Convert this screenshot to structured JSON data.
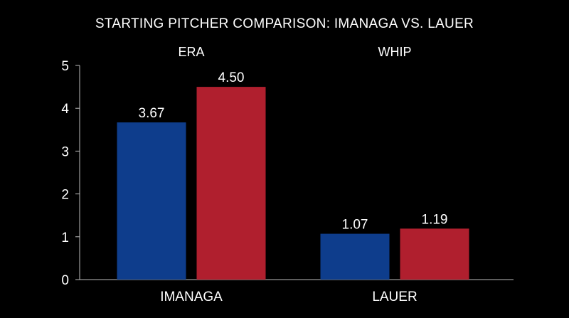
{
  "chart_data": {
    "type": "bar",
    "title": "STARTING PITCHER COMPARISON: IMANAGA VS. LAUER",
    "xlabel": "",
    "ylabel": "",
    "ylim": [
      0,
      5
    ],
    "yticks": [
      "0",
      "1",
      "2",
      "3",
      "4",
      "5"
    ],
    "grid": false,
    "categories": [
      "IMANAGA",
      "LAUER"
    ],
    "group_labels": [
      "ERA",
      "WHIP"
    ],
    "groups": [
      {
        "label": "ERA",
        "category": "IMANAGA",
        "bars": [
          {
            "value": 3.67,
            "label": "3.67",
            "color": "#0e3d8c"
          },
          {
            "value": 4.5,
            "label": "4.50",
            "color": "#b01f2e"
          }
        ]
      },
      {
        "label": "WHIP",
        "category": "LAUER",
        "bars": [
          {
            "value": 1.07,
            "label": "1.07",
            "color": "#0e3d8c"
          },
          {
            "value": 1.19,
            "label": "1.19",
            "color": "#b01f2e"
          }
        ]
      }
    ]
  }
}
